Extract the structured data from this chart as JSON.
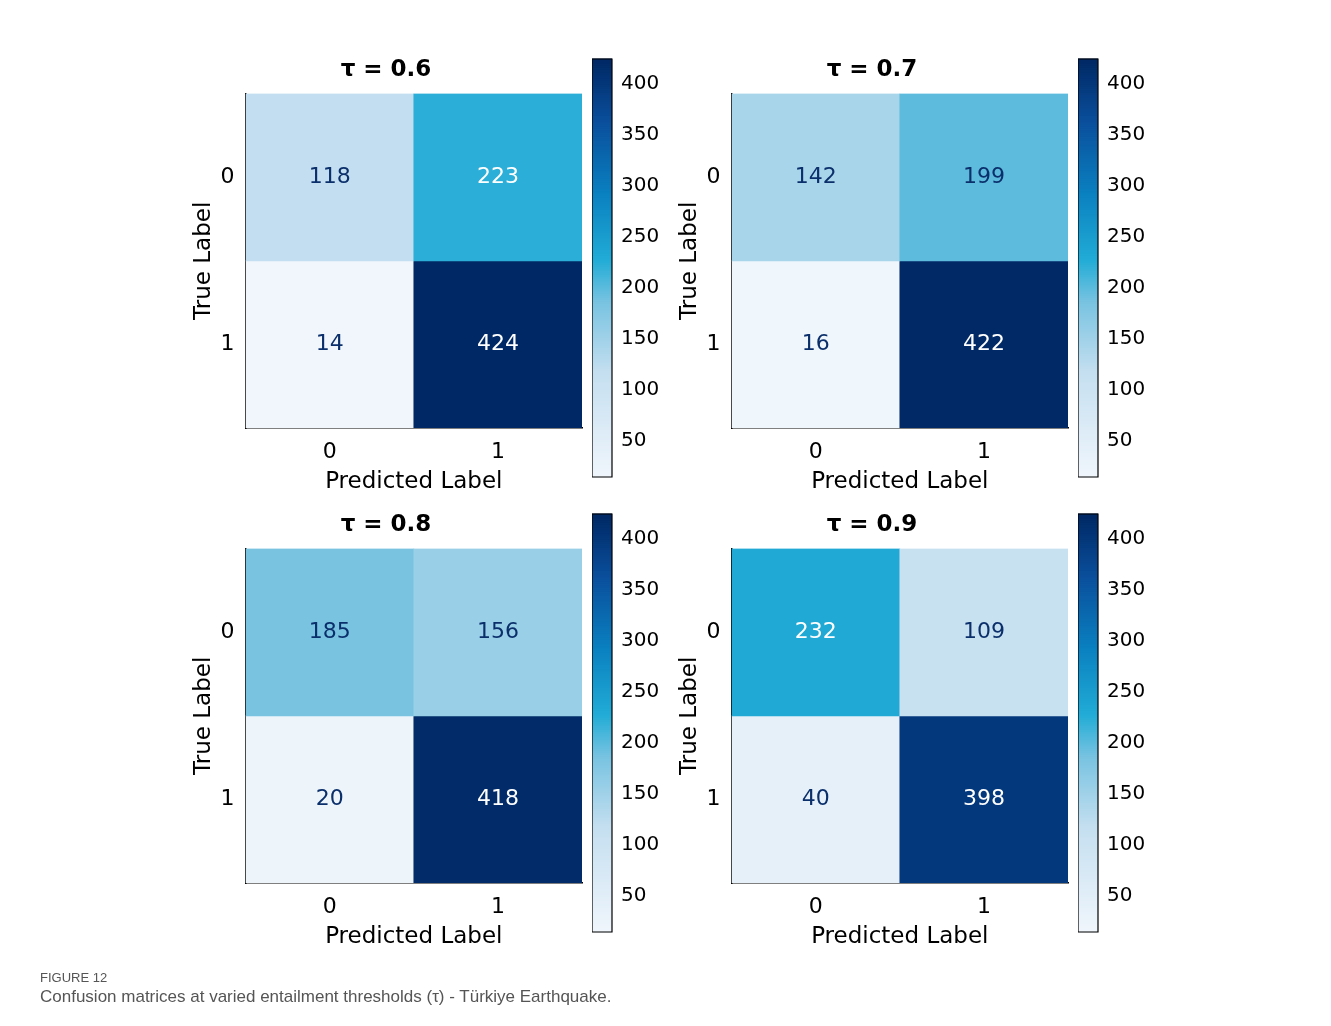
{
  "chart_data": [
    {
      "type": "heatmap",
      "title": "τ = 0.6",
      "xlabel": "Predicted Label",
      "ylabel": "True Label",
      "categories": [
        "0",
        "1"
      ],
      "y_categories": [
        "0",
        "1"
      ],
      "cells": [
        [
          118,
          223
        ],
        [
          14,
          424
        ]
      ],
      "data_labels": true,
      "clim": [
        14,
        424
      ],
      "cticks": [
        50,
        100,
        150,
        200,
        250,
        300,
        350,
        400
      ]
    },
    {
      "type": "heatmap",
      "title": "τ = 0.7",
      "xlabel": "Predicted Label",
      "ylabel": "True Label",
      "categories": [
        "0",
        "1"
      ],
      "y_categories": [
        "0",
        "1"
      ],
      "cells": [
        [
          142,
          199
        ],
        [
          16,
          422
        ]
      ],
      "data_labels": true,
      "clim": [
        14,
        424
      ],
      "cticks": [
        50,
        100,
        150,
        200,
        250,
        300,
        350,
        400
      ]
    },
    {
      "type": "heatmap",
      "title": "τ = 0.8",
      "xlabel": "Predicted Label",
      "ylabel": "True Label",
      "categories": [
        "0",
        "1"
      ],
      "y_categories": [
        "0",
        "1"
      ],
      "cells": [
        [
          185,
          156
        ],
        [
          20,
          418
        ]
      ],
      "data_labels": true,
      "clim": [
        14,
        424
      ],
      "cticks": [
        50,
        100,
        150,
        200,
        250,
        300,
        350,
        400
      ]
    },
    {
      "type": "heatmap",
      "title": "τ = 0.9",
      "xlabel": "Predicted Label",
      "ylabel": "True Label",
      "categories": [
        "0",
        "1"
      ],
      "y_categories": [
        "0",
        "1"
      ],
      "cells": [
        [
          232,
          109
        ],
        [
          40,
          398
        ]
      ],
      "data_labels": true,
      "clim": [
        14,
        424
      ],
      "cticks": [
        50,
        100,
        150,
        200,
        250,
        300,
        350,
        400
      ],
      "annotations": [
        "FIGURE 12",
        "Confusion matrices at varied entailment thresholds (τ) - Türkiye Earthquake."
      ]
    }
  ]
}
